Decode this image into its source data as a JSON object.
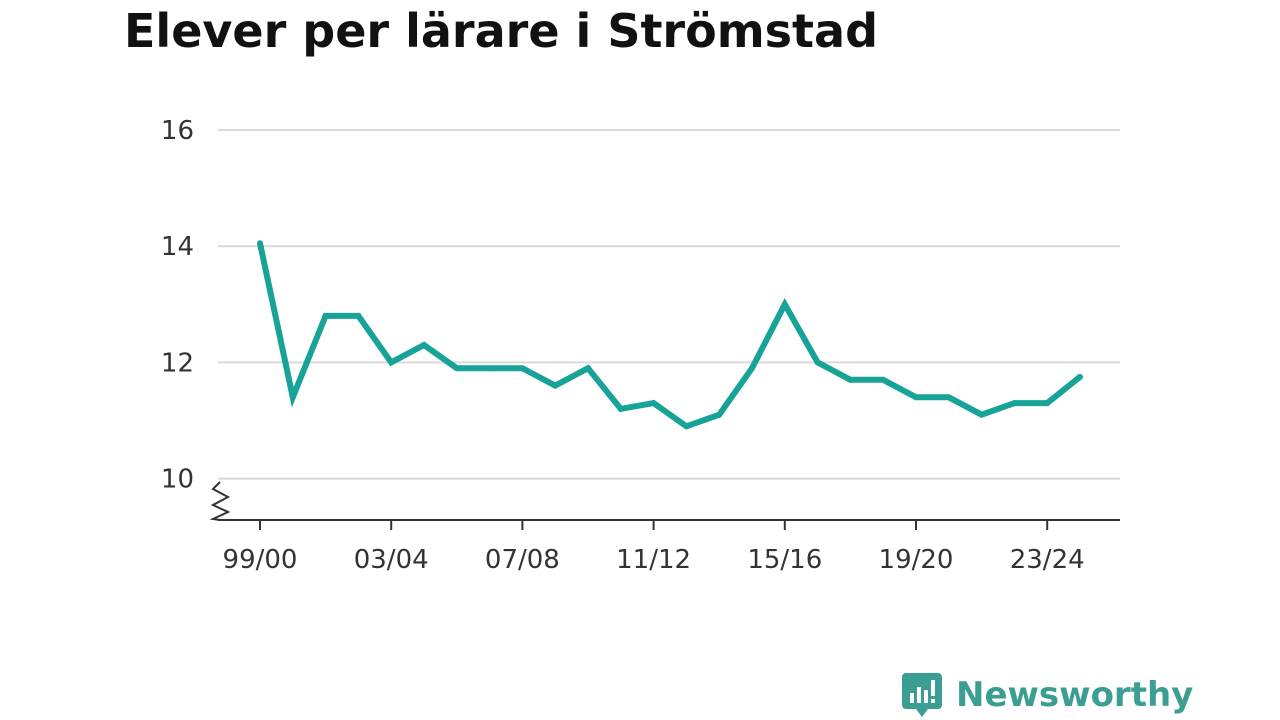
{
  "title": "Elever per lärare i Strömstad",
  "brand": {
    "name": "Newsworthy",
    "color": "#3a9e93"
  },
  "chart_data": {
    "type": "line",
    "title": "Elever per lärare i Strömstad",
    "xlabel": "",
    "ylabel": "",
    "x": [
      "99/00",
      "00/01",
      "01/02",
      "02/03",
      "03/04",
      "04/05",
      "05/06",
      "06/07",
      "07/08",
      "08/09",
      "09/10",
      "10/11",
      "11/12",
      "12/13",
      "13/14",
      "14/15",
      "15/16",
      "16/17",
      "17/18",
      "18/19",
      "19/20",
      "20/21",
      "21/22",
      "22/23",
      "23/24",
      "24/25"
    ],
    "x_tick_labels": [
      "99/00",
      "03/04",
      "07/08",
      "11/12",
      "15/16",
      "19/20",
      "23/24"
    ],
    "y_ticks": [
      10,
      12,
      14,
      16
    ],
    "ylim": [
      9.3,
      16
    ],
    "y_axis_break": true,
    "grid": true,
    "series": [
      {
        "color": "#17a398",
        "values": [
          14.05,
          11.4,
          12.8,
          12.8,
          12.0,
          12.3,
          11.9,
          11.9,
          11.9,
          11.6,
          11.9,
          11.2,
          11.3,
          10.9,
          11.1,
          11.9,
          13.0,
          12.0,
          11.7,
          11.7,
          11.4,
          11.4,
          11.1,
          11.3,
          11.3,
          11.75
        ]
      }
    ]
  }
}
